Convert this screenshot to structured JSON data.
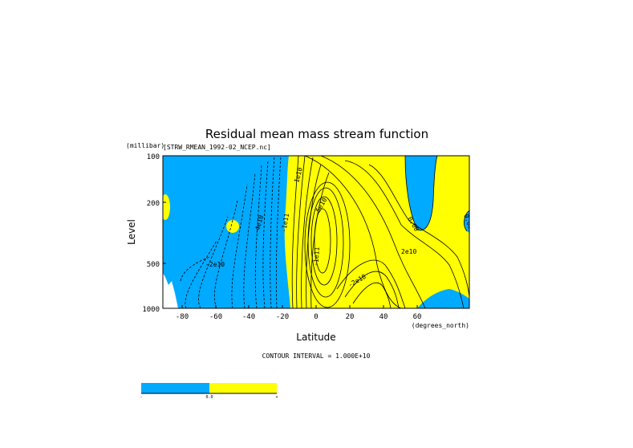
{
  "chart_data": {
    "type": "contour",
    "title": "Residual mean mass stream function",
    "subtitle": "[STRW_RMEAN_1992-02_NCEP.nc]",
    "xlabel": "Latitude",
    "x_units": "(degrees_north)",
    "ylabel": "Level",
    "y_units": "(millibar)",
    "x_ticks": [
      -80,
      -60,
      -40,
      -20,
      0,
      20,
      40,
      60
    ],
    "xlim": [
      -90,
      90
    ],
    "y_ticks": [
      100,
      200,
      500,
      1000
    ],
    "ylim": [
      1000,
      100
    ],
    "y_scale": "log",
    "contour_interval_label": "CONTOUR INTERVAL = 1.000E+10",
    "contour_labels": [
      {
        "text": "-2e10",
        "x": -68,
        "y": 460
      },
      {
        "text": "-4e10",
        "x": -42,
        "y": 300
      },
      {
        "text": "-1e11",
        "x": -16,
        "y": 270
      },
      {
        "text": "-1e11",
        "x": 4,
        "y": 450
      },
      {
        "text": "1e10",
        "x": 14,
        "y": 150
      },
      {
        "text": "5e10",
        "x": 20,
        "y": 215
      },
      {
        "text": "2e10",
        "x": 52,
        "y": 400
      },
      {
        "text": "-2e10",
        "x": 38,
        "y": 480
      },
      {
        "text": "0.00",
        "x": 60,
        "y": 250
      },
      {
        "text": "0.00",
        "x": 86,
        "y": 240
      }
    ],
    "regions": [
      {
        "name": "negative",
        "color": "#00aaff"
      },
      {
        "name": "positive",
        "color": "#ffff00"
      }
    ],
    "colorbar": {
      "ticks": [
        "-",
        "0.0",
        "+"
      ],
      "colors": [
        "#00aaff",
        "#ffff00"
      ]
    },
    "grid": false
  },
  "colors": {
    "negative": "#00aaff",
    "positive": "#ffff00",
    "line": "#000000"
  }
}
